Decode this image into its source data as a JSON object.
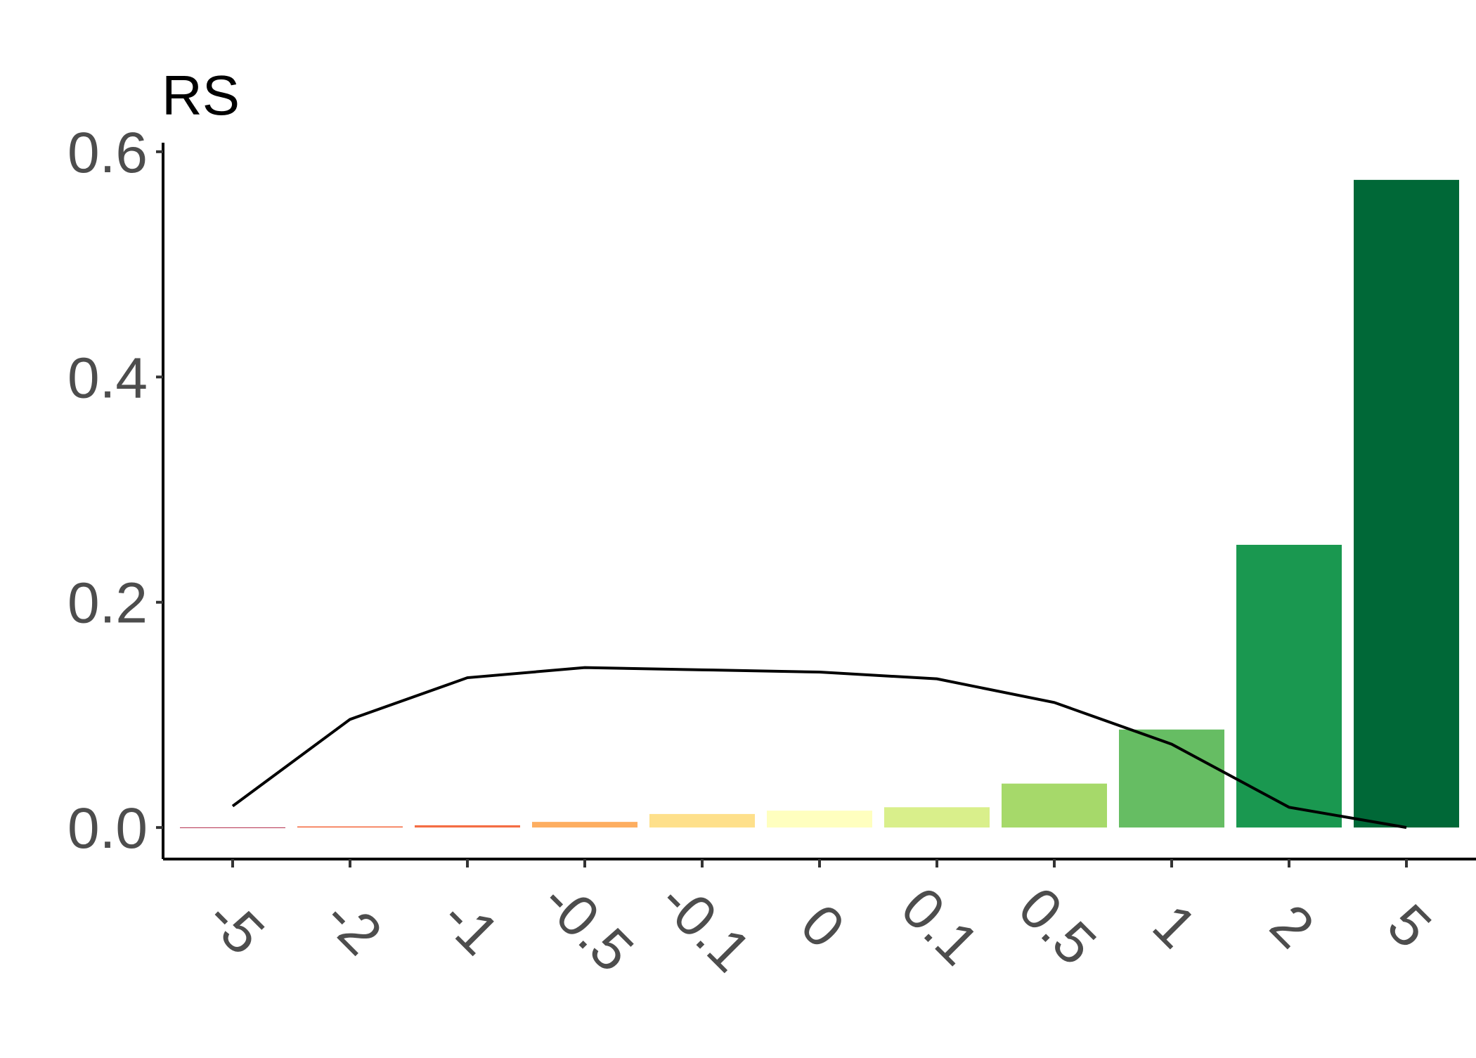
{
  "chart_data": {
    "type": "bar",
    "ylabel": "RS",
    "xlabel": "",
    "title": "",
    "categories": [
      "-5",
      "-2",
      "-1",
      "-0.5",
      "-0.1",
      "0",
      "0.1",
      "0.5",
      "1",
      "2",
      "5"
    ],
    "values": [
      0.0,
      0.001,
      0.002,
      0.005,
      0.012,
      0.015,
      0.018,
      0.039,
      0.087,
      0.251,
      0.575
    ],
    "bar_colors": [
      "#a50026",
      "#f46d43",
      "#f46d43",
      "#fdae61",
      "#fee08b",
      "#ffffbf",
      "#d9ef8b",
      "#a6d96a",
      "#66bd63",
      "#1a9850",
      "#006837"
    ],
    "line_values": [
      0.019,
      0.096,
      0.133,
      0.142,
      0.14,
      0.138,
      0.132,
      0.111,
      0.074,
      0.018,
      0.0
    ],
    "yticks": [
      "0.0",
      "0.2",
      "0.4",
      "0.6"
    ],
    "ytick_values": [
      0,
      0.2,
      0.4,
      0.6
    ],
    "ylim": [
      -0.028,
      0.608
    ],
    "grid": false,
    "legend": "none"
  }
}
